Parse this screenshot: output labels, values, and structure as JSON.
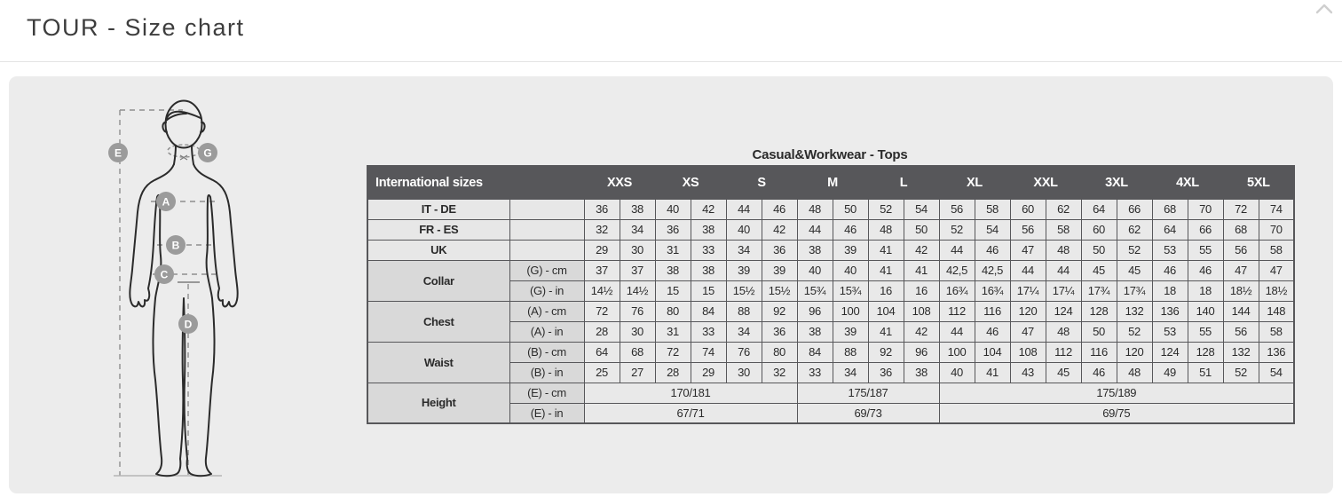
{
  "page": {
    "title": "TOUR - Size chart"
  },
  "icons": {
    "scroll_top": "chevron-up"
  },
  "diagram": {
    "markers": [
      "E",
      "G",
      "A",
      "B",
      "C",
      "D"
    ],
    "badge_color": "#9b9b9b",
    "outline_color": "#2b2b2b",
    "dash_color": "#8f8f8f"
  },
  "chart_data": {
    "type": "table",
    "title": "Casual&Workwear - Tops",
    "corner_label": "International sizes",
    "size_headers": [
      "XXS",
      "XS",
      "S",
      "M",
      "L",
      "XL",
      "XXL",
      "3XL",
      "4XL",
      "5XL"
    ],
    "simple_rows": [
      {
        "label": "IT - DE",
        "values": [
          "36",
          "38",
          "40",
          "42",
          "44",
          "46",
          "48",
          "50",
          "52",
          "54",
          "56",
          "58",
          "60",
          "62",
          "64",
          "66",
          "68",
          "70",
          "72",
          "74"
        ]
      },
      {
        "label": "FR - ES",
        "values": [
          "32",
          "34",
          "36",
          "38",
          "40",
          "42",
          "44",
          "46",
          "48",
          "50",
          "52",
          "54",
          "56",
          "58",
          "60",
          "62",
          "64",
          "66",
          "68",
          "70"
        ]
      },
      {
        "label": "UK",
        "values": [
          "29",
          "30",
          "31",
          "33",
          "34",
          "36",
          "38",
          "39",
          "41",
          "42",
          "44",
          "46",
          "47",
          "48",
          "50",
          "52",
          "53",
          "55",
          "56",
          "58"
        ]
      }
    ],
    "group_rows": [
      {
        "label": "Collar",
        "sub_rows": [
          {
            "unit_label": "(G) - cm",
            "values": [
              "37",
              "37",
              "38",
              "38",
              "39",
              "39",
              "40",
              "40",
              "41",
              "41",
              "42,5",
              "42,5",
              "44",
              "44",
              "45",
              "45",
              "46",
              "46",
              "47",
              "47"
            ]
          },
          {
            "unit_label": "(G)  - in",
            "values": [
              "14½",
              "14½",
              "15",
              "15",
              "15½",
              "15½",
              "15¾",
              "15¾",
              "16",
              "16",
              "16¾",
              "16¾",
              "17¼",
              "17¼",
              "17¾",
              "17¾",
              "18",
              "18",
              "18½",
              "18½"
            ]
          }
        ]
      },
      {
        "label": "Chest",
        "sub_rows": [
          {
            "unit_label": "(A) - cm",
            "values": [
              "72",
              "76",
              "80",
              "84",
              "88",
              "92",
              "96",
              "100",
              "104",
              "108",
              "112",
              "116",
              "120",
              "124",
              "128",
              "132",
              "136",
              "140",
              "144",
              "148"
            ]
          },
          {
            "unit_label": "(A) - in",
            "values": [
              "28",
              "30",
              "31",
              "33",
              "34",
              "36",
              "38",
              "39",
              "41",
              "42",
              "44",
              "46",
              "47",
              "48",
              "50",
              "52",
              "53",
              "55",
              "56",
              "58"
            ]
          }
        ]
      },
      {
        "label": "Waist",
        "sub_rows": [
          {
            "unit_label": "(B) - cm",
            "values": [
              "64",
              "68",
              "72",
              "74",
              "76",
              "80",
              "84",
              "88",
              "92",
              "96",
              "100",
              "104",
              "108",
              "112",
              "116",
              "120",
              "124",
              "128",
              "132",
              "136"
            ]
          },
          {
            "unit_label": "(B) - in",
            "values": [
              "25",
              "27",
              "28",
              "29",
              "30",
              "32",
              "33",
              "34",
              "36",
              "38",
              "40",
              "41",
              "43",
              "45",
              "46",
              "48",
              "49",
              "51",
              "52",
              "54"
            ]
          }
        ]
      },
      {
        "label": "Height",
        "sub_rows": [
          {
            "unit_label": "(E) - cm",
            "spans": [
              {
                "value": "170/181",
                "colspan": 6
              },
              {
                "value": "175/187",
                "colspan": 4
              },
              {
                "value": "175/189",
                "colspan": 10
              }
            ]
          },
          {
            "unit_label": "(E) - in",
            "spans": [
              {
                "value": "67/71",
                "colspan": 6
              },
              {
                "value": "69/73",
                "colspan": 4
              },
              {
                "value": "69/75",
                "colspan": 10
              }
            ]
          }
        ]
      }
    ]
  }
}
